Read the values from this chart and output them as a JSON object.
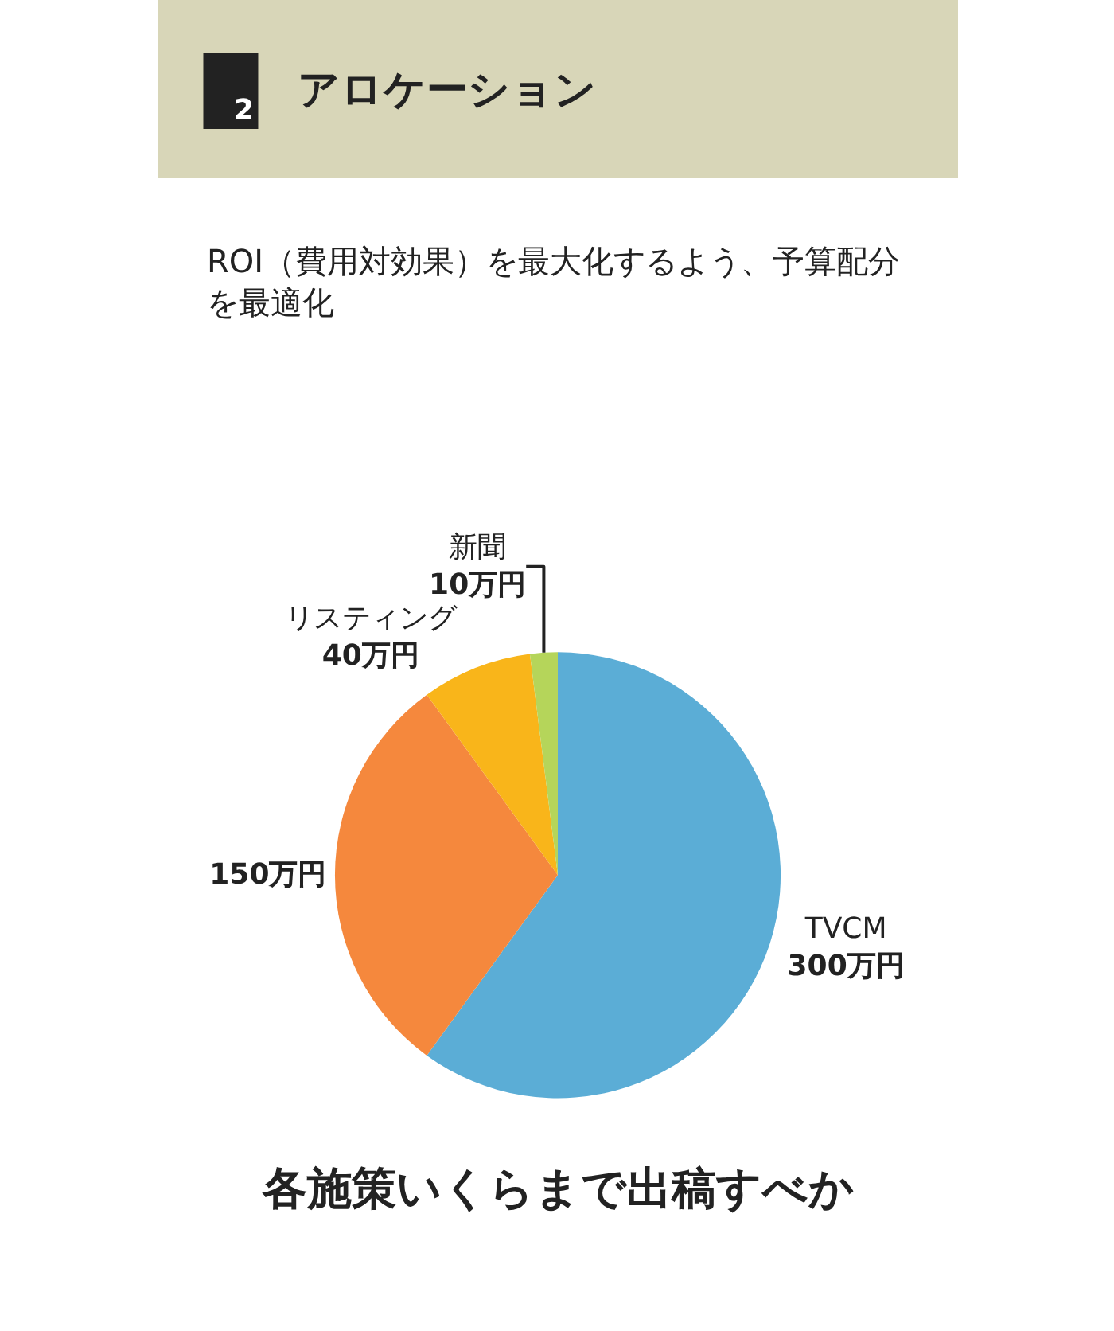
{
  "chart_data": {
    "type": "pie",
    "title": "アロケーション",
    "subtitle": "ROI（費用対効果）を最大化するよう、予算配分を最適化",
    "annotations": [
      "2",
      "各施策いくらまで出稿すべか"
    ],
    "categories": [
      "TVCM",
      null,
      "リスティング",
      "新聞"
    ],
    "values": [
      300,
      150,
      40,
      10
    ],
    "value_labels": [
      "300万円",
      "150万円",
      "40万円",
      "10万円"
    ],
    "colors": [
      "#5badd6",
      "#f5883d",
      "#f9b51a",
      "#b5d55a"
    ],
    "legend": false
  }
}
